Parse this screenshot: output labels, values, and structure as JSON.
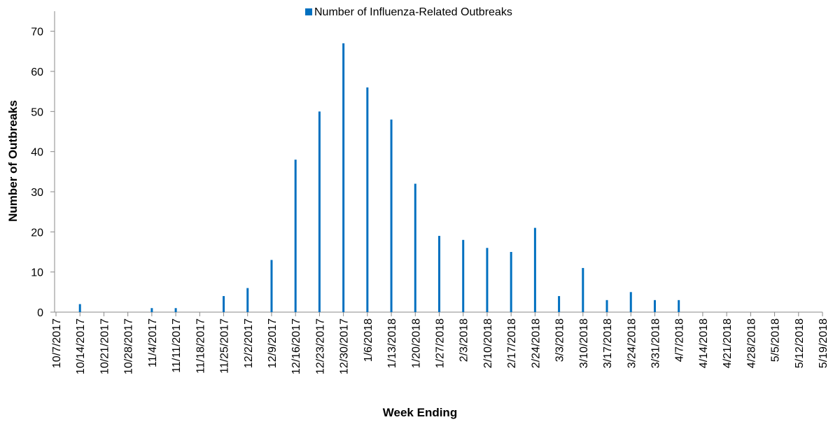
{
  "chart_data": {
    "type": "bar",
    "x_label": "Week Ending",
    "y_label": "Number of Outbreaks",
    "categories": [
      "10/7/2017",
      "10/14/2017",
      "10/21/2017",
      "10/28/2017",
      "11/4/2017",
      "11/11/2017",
      "11/18/2017",
      "11/25/2017",
      "12/2/2017",
      "12/9/2017",
      "12/16/2017",
      "12/23/2017",
      "12/30/2017",
      "1/6/2018",
      "1/13/2018",
      "1/20/2018",
      "1/27/2018",
      "2/3/2018",
      "2/10/2018",
      "2/17/2018",
      "2/24/2018",
      "3/3/2018",
      "3/10/2018",
      "3/17/2018",
      "3/24/2018",
      "3/31/2018",
      "4/7/2018",
      "4/14/2018",
      "4/21/2018",
      "4/28/2018",
      "5/5/2018",
      "5/12/2018",
      "5/19/2018"
    ],
    "series": [
      {
        "name": "Number of Influenza-Related Outbreaks",
        "color": "#0070c0",
        "values": [
          0,
          2,
          0,
          0,
          1,
          1,
          0,
          4,
          6,
          13,
          38,
          50,
          67,
          56,
          48,
          32,
          19,
          18,
          16,
          15,
          21,
          4,
          11,
          3,
          5,
          3,
          3,
          0,
          0,
          0,
          0,
          0,
          0
        ]
      }
    ],
    "ylim": [
      0,
      75
    ],
    "yticks": [
      0,
      10,
      20,
      30,
      40,
      50,
      60,
      70
    ],
    "grid": false,
    "legend": "top"
  }
}
